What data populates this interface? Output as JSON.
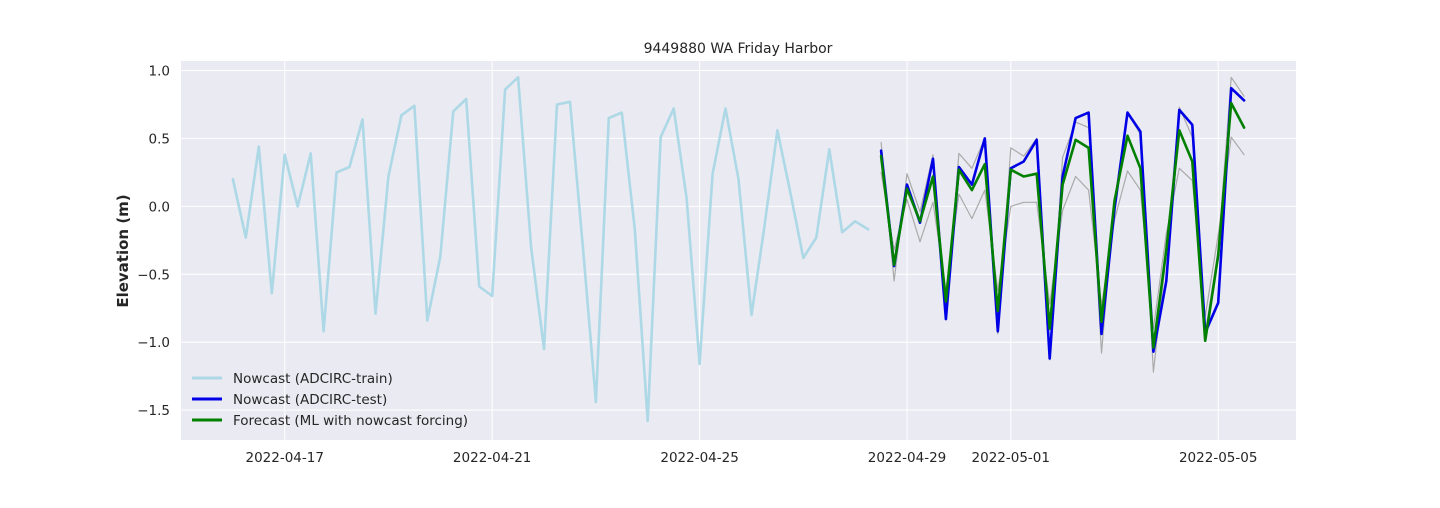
{
  "chart_data": {
    "type": "line",
    "title": "9449880 WA Friday Harbor",
    "xlabel": "",
    "ylabel": "Elevation (m)",
    "xlim": [
      "2022-04-15T00:00",
      "2022-05-06T12:00"
    ],
    "ylim": [
      -1.72,
      1.07
    ],
    "grid": true,
    "legend_position": "lower-left",
    "x_ticks": [
      "2022-04-17",
      "2022-04-21",
      "2022-04-25",
      "2022-04-29",
      "2022-05-01",
      "2022-05-05"
    ],
    "y_ticks": [
      "1.0",
      "0.5",
      "0.0",
      "−0.5",
      "−1.0",
      "−1.5"
    ],
    "y_tick_values": [
      1.0,
      0.5,
      0.0,
      -0.5,
      -1.0,
      -1.5
    ],
    "series": [
      {
        "name": "Nowcast (ADCIRC-train)",
        "color": "#add8e6",
        "x": [
          "2022-04-16T00:00",
          "2022-04-16T06:00",
          "2022-04-16T12:00",
          "2022-04-16T18:00",
          "2022-04-17T00:00",
          "2022-04-17T06:00",
          "2022-04-17T12:00",
          "2022-04-17T18:00",
          "2022-04-18T00:00",
          "2022-04-18T06:00",
          "2022-04-18T12:00",
          "2022-04-18T18:00",
          "2022-04-19T00:00",
          "2022-04-19T06:00",
          "2022-04-19T12:00",
          "2022-04-19T18:00",
          "2022-04-20T00:00",
          "2022-04-20T06:00",
          "2022-04-20T12:00",
          "2022-04-20T18:00",
          "2022-04-21T00:00",
          "2022-04-21T06:00",
          "2022-04-21T12:00",
          "2022-04-21T18:00",
          "2022-04-22T00:00",
          "2022-04-22T06:00",
          "2022-04-22T12:00",
          "2022-04-22T18:00",
          "2022-04-23T00:00",
          "2022-04-23T06:00",
          "2022-04-23T12:00",
          "2022-04-23T18:00",
          "2022-04-24T00:00",
          "2022-04-24T06:00",
          "2022-04-24T12:00",
          "2022-04-24T18:00",
          "2022-04-25T00:00",
          "2022-04-25T06:00",
          "2022-04-25T12:00",
          "2022-04-25T18:00",
          "2022-04-26T00:00",
          "2022-04-26T06:00",
          "2022-04-26T12:00",
          "2022-04-26T18:00",
          "2022-04-27T00:00",
          "2022-04-27T06:00",
          "2022-04-27T12:00",
          "2022-04-27T18:00",
          "2022-04-28T00:00",
          "2022-04-28T06:00"
        ],
        "values": [
          0.2,
          -0.23,
          0.44,
          -0.64,
          0.38,
          0.0,
          0.39,
          -0.92,
          0.25,
          0.29,
          0.64,
          -0.79,
          0.22,
          0.67,
          0.74,
          -0.84,
          -0.37,
          0.7,
          0.79,
          -0.59,
          -0.66,
          0.86,
          0.95,
          -0.3,
          -1.05,
          0.75,
          0.77,
          -0.3,
          -1.44,
          0.65,
          0.69,
          -0.17,
          -1.58,
          0.51,
          0.72,
          0.06,
          -1.16,
          0.24,
          0.72,
          0.2,
          -0.8,
          -0.15,
          0.56,
          0.1,
          -0.38,
          -0.23,
          0.42,
          -0.19,
          -0.11,
          -0.17
        ]
      },
      {
        "name": "Nowcast (ADCIRC-test)",
        "color": "#0000e6",
        "x": [
          "2022-04-28T12:00",
          "2022-04-28T18:00",
          "2022-04-29T00:00",
          "2022-04-29T06:00",
          "2022-04-29T12:00",
          "2022-04-29T18:00",
          "2022-04-30T00:00",
          "2022-04-30T06:00",
          "2022-04-30T12:00",
          "2022-04-30T18:00",
          "2022-05-01T00:00",
          "2022-05-01T06:00",
          "2022-05-01T12:00",
          "2022-05-01T18:00",
          "2022-05-02T00:00",
          "2022-05-02T06:00",
          "2022-05-02T12:00",
          "2022-05-02T18:00",
          "2022-05-03T00:00",
          "2022-05-03T06:00",
          "2022-05-03T12:00",
          "2022-05-03T18:00",
          "2022-05-04T00:00",
          "2022-05-04T06:00",
          "2022-05-04T12:00",
          "2022-05-04T18:00",
          "2022-05-05T00:00",
          "2022-05-05T06:00",
          "2022-05-05T12:00"
        ],
        "values": [
          0.41,
          -0.44,
          0.16,
          -0.12,
          0.35,
          -0.83,
          0.29,
          0.16,
          0.5,
          -0.92,
          0.28,
          0.33,
          0.49,
          -1.12,
          0.22,
          0.65,
          0.69,
          -0.94,
          -0.02,
          0.69,
          0.55,
          -1.07,
          -0.55,
          0.71,
          0.6,
          -0.93,
          -0.71,
          0.87,
          0.78
        ]
      },
      {
        "name": "Forecast (ML with nowcast forcing)",
        "color": "#008000",
        "x": [
          "2022-04-28T12:00",
          "2022-04-28T18:00",
          "2022-04-29T00:00",
          "2022-04-29T06:00",
          "2022-04-29T12:00",
          "2022-04-29T18:00",
          "2022-04-30T00:00",
          "2022-04-30T06:00",
          "2022-04-30T12:00",
          "2022-04-30T18:00",
          "2022-05-01T00:00",
          "2022-05-01T06:00",
          "2022-05-01T12:00",
          "2022-05-01T18:00",
          "2022-05-02T00:00",
          "2022-05-02T06:00",
          "2022-05-02T12:00",
          "2022-05-02T18:00",
          "2022-05-03T00:00",
          "2022-05-03T06:00",
          "2022-05-03T12:00",
          "2022-05-03T18:00",
          "2022-05-04T00:00",
          "2022-05-04T06:00",
          "2022-05-04T12:00",
          "2022-05-04T18:00",
          "2022-05-05T00:00",
          "2022-05-05T06:00",
          "2022-05-05T12:00"
        ],
        "values": [
          0.37,
          -0.43,
          0.13,
          -0.11,
          0.22,
          -0.7,
          0.27,
          0.12,
          0.31,
          -0.77,
          0.27,
          0.22,
          0.24,
          -0.9,
          0.16,
          0.49,
          0.43,
          -0.85,
          0.04,
          0.52,
          0.28,
          -1.04,
          -0.32,
          0.56,
          0.33,
          -0.99,
          -0.36,
          0.76,
          0.58
        ]
      },
      {
        "name": "",
        "color": "#aaaaaa",
        "x": [
          "2022-04-28T12:00",
          "2022-04-28T18:00",
          "2022-04-29T00:00",
          "2022-04-29T06:00",
          "2022-04-29T12:00",
          "2022-04-29T18:00",
          "2022-04-30T00:00",
          "2022-04-30T06:00",
          "2022-04-30T12:00",
          "2022-04-30T18:00",
          "2022-05-01T00:00",
          "2022-05-01T06:00",
          "2022-05-01T12:00",
          "2022-05-01T18:00",
          "2022-05-02T00:00",
          "2022-05-02T06:00",
          "2022-05-02T12:00",
          "2022-05-02T18:00",
          "2022-05-03T00:00",
          "2022-05-03T06:00",
          "2022-05-03T12:00",
          "2022-05-03T18:00",
          "2022-05-04T00:00",
          "2022-05-04T06:00",
          "2022-05-04T12:00",
          "2022-05-04T18:00",
          "2022-05-05T00:00",
          "2022-05-05T06:00",
          "2022-05-05T12:00"
        ],
        "values": [
          0.47,
          -0.55,
          0.24,
          -0.04,
          0.38,
          -0.79,
          0.39,
          0.28,
          0.5,
          -0.94,
          0.43,
          0.37,
          0.5,
          -1.13,
          0.36,
          0.62,
          0.58,
          -1.08,
          0.04,
          0.69,
          0.53,
          -1.22,
          -0.35,
          0.73,
          0.51,
          -0.94,
          -0.32,
          0.95,
          0.81
        ]
      },
      {
        "name": "",
        "color": "#aaaaaa",
        "x": [
          "2022-04-28T12:00",
          "2022-04-28T18:00",
          "2022-04-29T00:00",
          "2022-04-29T06:00",
          "2022-04-29T12:00",
          "2022-04-29T18:00",
          "2022-04-30T00:00",
          "2022-04-30T06:00",
          "2022-04-30T12:00",
          "2022-04-30T18:00",
          "2022-05-01T00:00",
          "2022-05-01T06:00",
          "2022-05-01T12:00",
          "2022-05-01T18:00",
          "2022-05-02T00:00",
          "2022-05-02T06:00",
          "2022-05-02T12:00",
          "2022-05-02T18:00",
          "2022-05-03T00:00",
          "2022-05-03T06:00",
          "2022-05-03T12:00",
          "2022-05-03T18:00",
          "2022-05-04T00:00",
          "2022-05-04T06:00",
          "2022-05-04T12:00",
          "2022-05-04T18:00",
          "2022-05-05T00:00",
          "2022-05-05T06:00",
          "2022-05-05T12:00"
        ],
        "values": [
          0.25,
          -0.32,
          0.05,
          -0.26,
          0.03,
          -0.62,
          0.09,
          -0.09,
          0.12,
          -0.62,
          0.0,
          0.03,
          0.03,
          -0.72,
          -0.03,
          0.22,
          0.12,
          -0.73,
          -0.1,
          0.26,
          0.12,
          -0.9,
          -0.2,
          0.28,
          0.19,
          -0.81,
          -0.21,
          0.51,
          0.38
        ]
      }
    ]
  }
}
